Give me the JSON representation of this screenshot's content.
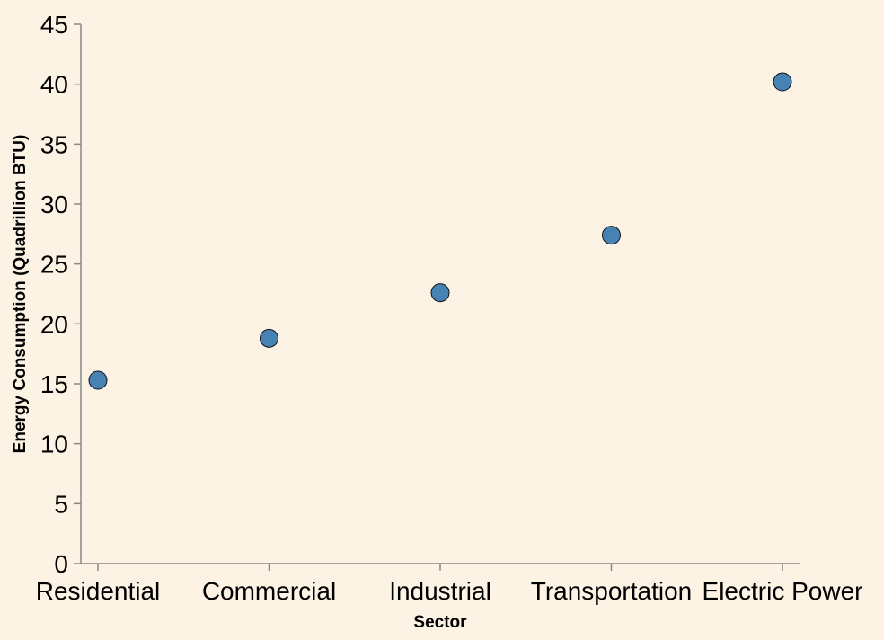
{
  "chart_data": {
    "type": "scatter",
    "categories": [
      "Residential",
      "Commercial",
      "Industrial",
      "Transportation",
      "Electric Power"
    ],
    "values": [
      15.3,
      18.8,
      22.6,
      27.4,
      40.2
    ],
    "xlabel": "Sector",
    "ylabel": "Energy Consumption (Quadrillion BTU)",
    "ylim": [
      0,
      45
    ],
    "yticks": [
      0,
      5,
      10,
      15,
      20,
      25,
      30,
      35,
      40,
      45
    ],
    "grid": false,
    "legend": "none",
    "colors": {
      "point": "#4682b4",
      "axis": "#888888",
      "background": "#fdf3e5"
    }
  }
}
